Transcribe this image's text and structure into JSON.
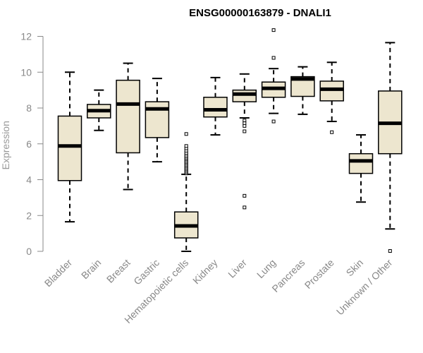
{
  "chart_data": {
    "type": "boxplot",
    "title": "ENSG00000163879 - DNALI1",
    "xlabel": "",
    "ylabel": "Expression",
    "ylim": [
      0,
      12
    ],
    "yticks": [
      0,
      2,
      4,
      6,
      8,
      10,
      12
    ],
    "grid": false,
    "colors": {
      "box_fill": "#ede6cf",
      "stroke": "#000000",
      "axis": "#888888"
    },
    "categories": [
      "Bladder",
      "Brain",
      "Breast",
      "Gastric",
      "Hematopoietic cells",
      "Kidney",
      "Liver",
      "Lung",
      "Pancreas",
      "Prostate",
      "Skin",
      "Unknown / Other"
    ],
    "boxes": [
      {
        "name": "Bladder",
        "whisker_low": 1.65,
        "q1": 3.95,
        "median": 5.88,
        "q3": 7.55,
        "whisker_high": 10.0,
        "outliers": []
      },
      {
        "name": "Brain",
        "whisker_low": 6.75,
        "q1": 7.45,
        "median": 7.85,
        "q3": 8.2,
        "whisker_high": 9.0,
        "outliers": []
      },
      {
        "name": "Breast",
        "whisker_low": 3.45,
        "q1": 5.5,
        "median": 8.22,
        "q3": 9.55,
        "whisker_high": 10.5,
        "outliers": []
      },
      {
        "name": "Gastric",
        "whisker_low": 5.0,
        "q1": 6.35,
        "median": 7.95,
        "q3": 8.35,
        "whisker_high": 9.65,
        "outliers": []
      },
      {
        "name": "Hematopoietic cells",
        "whisker_low": 0.0,
        "q1": 0.75,
        "median": 1.42,
        "q3": 2.2,
        "whisker_high": 4.3,
        "outliers": [
          4.35,
          4.42,
          4.5,
          4.58,
          4.66,
          4.74,
          4.82,
          4.9,
          4.98,
          5.06,
          5.14,
          5.22,
          5.3,
          5.4,
          5.5,
          5.62,
          5.75,
          5.88,
          6.55
        ]
      },
      {
        "name": "Kidney",
        "whisker_low": 6.5,
        "q1": 7.5,
        "median": 7.9,
        "q3": 8.6,
        "whisker_high": 9.7,
        "outliers": []
      },
      {
        "name": "Liver",
        "whisker_low": 7.45,
        "q1": 8.35,
        "median": 8.78,
        "q3": 9.0,
        "whisker_high": 9.9,
        "outliers": [
          7.3,
          7.15,
          7.0,
          6.7,
          3.1,
          2.45
        ]
      },
      {
        "name": "Lung",
        "whisker_low": 7.7,
        "q1": 8.6,
        "median": 9.1,
        "q3": 9.45,
        "whisker_high": 10.2,
        "outliers": [
          7.25,
          10.8,
          12.35
        ]
      },
      {
        "name": "Pancreas",
        "whisker_low": 7.65,
        "q1": 8.65,
        "median": 9.62,
        "q3": 9.75,
        "whisker_high": 10.3,
        "outliers": []
      },
      {
        "name": "Prostate",
        "whisker_low": 7.25,
        "q1": 8.4,
        "median": 9.05,
        "q3": 9.5,
        "whisker_high": 10.55,
        "outliers": [
          6.65
        ]
      },
      {
        "name": "Skin",
        "whisker_low": 2.75,
        "q1": 4.35,
        "median": 5.05,
        "q3": 5.45,
        "whisker_high": 6.5,
        "outliers": []
      },
      {
        "name": "Unknown / Other",
        "whisker_low": 1.25,
        "q1": 5.45,
        "median": 7.15,
        "q3": 8.95,
        "whisker_high": 11.65,
        "outliers": [
          0.02
        ]
      }
    ]
  }
}
